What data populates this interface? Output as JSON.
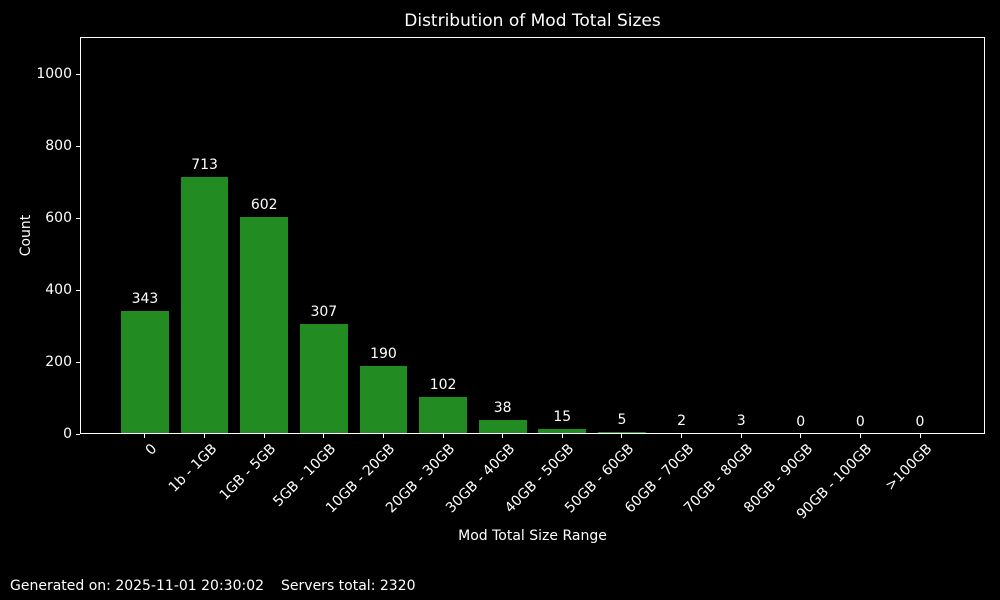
{
  "chart_data": {
    "type": "bar",
    "title": "Distribution of Mod Total Sizes",
    "xlabel": "Mod Total Size Range",
    "ylabel": "Count",
    "categories": [
      "0",
      "1b - 1GB",
      "1GB - 5GB",
      "5GB - 10GB",
      "10GB - 20GB",
      "20GB - 30GB",
      "30GB - 40GB",
      "40GB - 50GB",
      "50GB - 60GB",
      "60GB - 70GB",
      "70GB - 80GB",
      "80GB - 90GB",
      "90GB - 100GB",
      ">100GB"
    ],
    "values": [
      343,
      713,
      602,
      307,
      190,
      102,
      38,
      15,
      5,
      2,
      3,
      0,
      0,
      0
    ],
    "yticks": [
      0,
      200,
      400,
      600,
      800,
      1000
    ],
    "ylim": [
      0,
      1103
    ],
    "bar_color": "#228B22",
    "background_color": "#000000",
    "text_color": "#ffffff",
    "spine_color": "#ffffff",
    "show_value_labels": true,
    "grid": false,
    "legend": "none",
    "x_tick_rotation_deg": 45
  },
  "footer": {
    "generated": "Generated on: 2025-11-01 20:30:02",
    "servers_total": "Servers total: 2320"
  }
}
